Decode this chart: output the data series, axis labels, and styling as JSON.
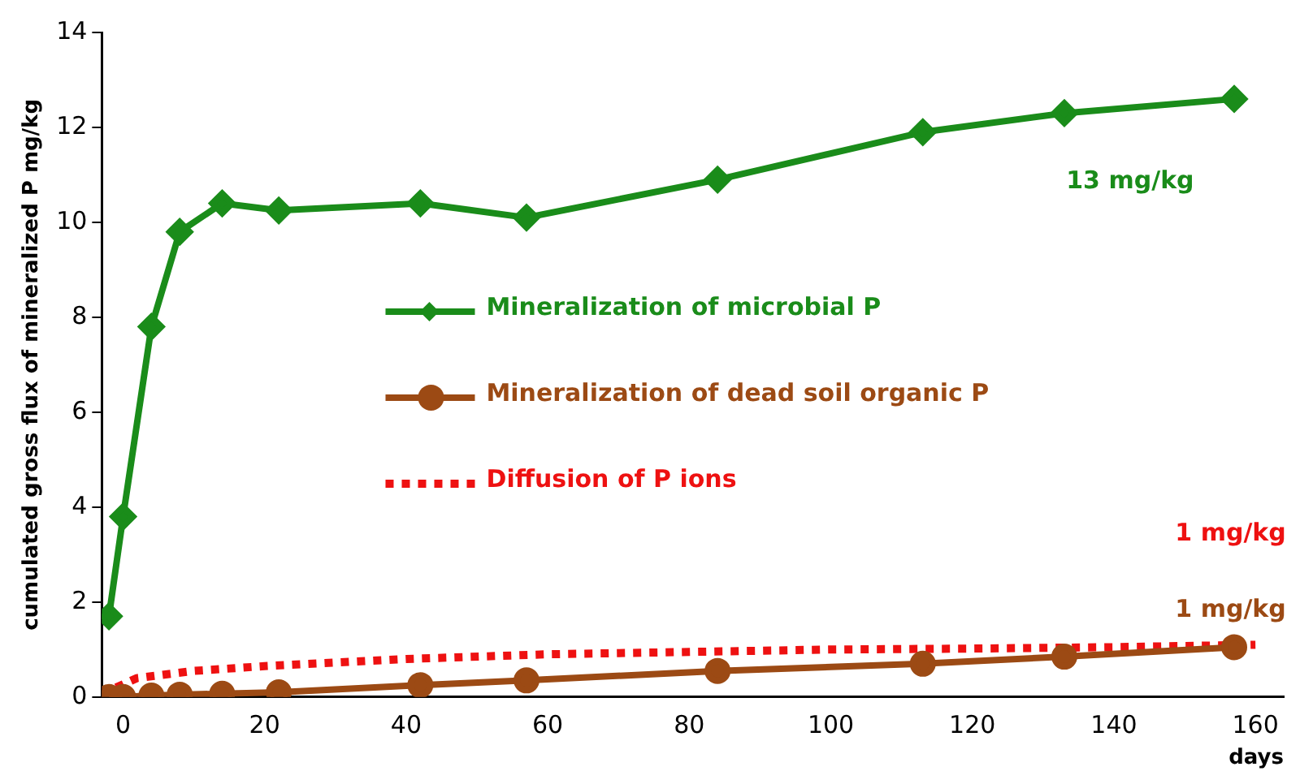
{
  "chart_data": {
    "type": "line",
    "xlabel": "days",
    "ylabel": "cumulated gross flux of mineralized P mg/kg",
    "xlim": [
      -3,
      164
    ],
    "xticks": [
      0,
      20,
      40,
      60,
      80,
      100,
      120,
      140,
      160
    ],
    "ylim": [
      0,
      14
    ],
    "yticks": [
      0,
      2,
      4,
      6,
      8,
      10,
      12,
      14
    ],
    "grid": false,
    "legend": "center",
    "series": [
      {
        "name": "Mineralization of microbial P",
        "color": "#1a8c1a",
        "marker": "diamond",
        "line_style": "solid",
        "x": [
          -2,
          0,
          4,
          8,
          14,
          22,
          42,
          57,
          84,
          113,
          133,
          157
        ],
        "values": [
          1.7,
          3.8,
          7.8,
          9.8,
          10.4,
          10.25,
          10.4,
          10.1,
          10.9,
          11.9,
          12.3,
          12.6
        ]
      },
      {
        "name": "Mineralization of dead soil organic P",
        "color": "#9c4a14",
        "marker": "circle",
        "line_style": "solid",
        "x": [
          -2,
          0,
          4,
          8,
          14,
          22,
          42,
          57,
          84,
          113,
          133,
          157
        ],
        "values": [
          0,
          0,
          0.03,
          0.05,
          0.07,
          0.1,
          0.25,
          0.35,
          0.55,
          0.7,
          0.85,
          1.05
        ]
      },
      {
        "name": "Diffusion of P ions",
        "color": "#ee1111",
        "marker": "none",
        "line_style": "dotted",
        "x": [
          -1,
          2,
          10,
          20,
          40,
          60,
          80,
          100,
          120,
          140,
          160
        ],
        "values": [
          0.2,
          0.4,
          0.55,
          0.65,
          0.8,
          0.9,
          0.95,
          1.0,
          1.02,
          1.05,
          1.1
        ]
      }
    ],
    "annotations": [
      "13 mg/kg",
      "1 mg/kg",
      "1 mg/kg"
    ]
  }
}
